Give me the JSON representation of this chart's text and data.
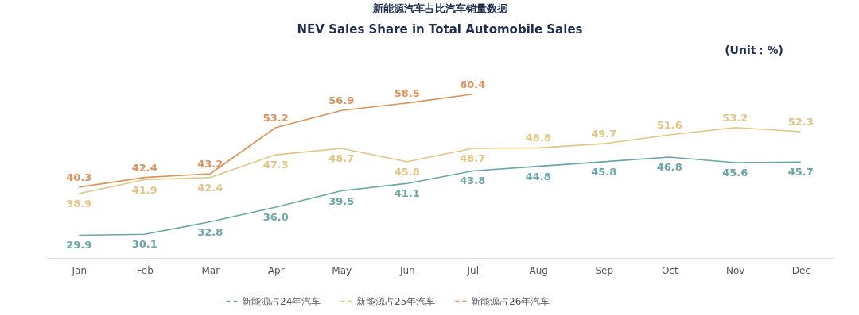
{
  "chart_data": {
    "type": "line",
    "title": "新能源汽车占比汽车销量数据",
    "subtitle": "NEV Sales Share in Total Automobile Sales",
    "annotations": [
      "(Unit：%)"
    ],
    "categories": [
      "Jan",
      "Feb",
      "Mar",
      "Apr",
      "May",
      "Jun",
      "Jul",
      "Aug",
      "Sep",
      "Oct",
      "Nov",
      "Dec"
    ],
    "series": [
      {
        "name": "新能源占24年汽车",
        "color": "#6aa7a8",
        "values": [
          29.9,
          30.1,
          32.8,
          36.0,
          39.5,
          41.1,
          43.8,
          44.8,
          45.8,
          46.8,
          45.6,
          45.7
        ],
        "value_labels": [
          "29.9",
          "30.1",
          "32.8",
          "36.0",
          "39.5",
          "41.1",
          "43.8",
          "44.8",
          "45.8",
          "46.8",
          "45.6",
          "45.7"
        ]
      },
      {
        "name": "新能源占25年汽车",
        "color": "#e3c483",
        "values": [
          38.9,
          41.9,
          42.4,
          47.3,
          48.7,
          45.8,
          48.7,
          48.8,
          49.7,
          51.6,
          53.2,
          52.3
        ],
        "value_labels": [
          "38.9",
          "41.9",
          "42.4",
          "47.3",
          "48.7",
          "45.8",
          "48.7",
          "48.8",
          "49.7",
          "51.6",
          "53.2",
          "52.3"
        ]
      },
      {
        "name": "新能源占26年汽车",
        "color": "#de9158",
        "values": [
          40.3,
          42.4,
          43.2,
          53.2,
          56.9,
          58.5,
          60.4,
          null,
          null,
          null,
          null,
          null
        ],
        "value_labels": [
          "40.3",
          "42.4",
          "43.2",
          "53.2",
          "56.9",
          "58.5",
          "60.4",
          null,
          null,
          null,
          null,
          null
        ]
      }
    ],
    "legend": "bottom",
    "tick_labels": "x",
    "line_style": "solid"
  }
}
